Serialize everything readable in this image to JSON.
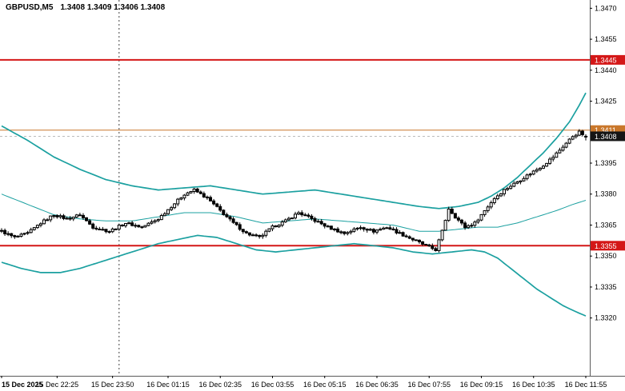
{
  "header": {
    "symbol_period": "GBPUSD,M5",
    "ohlc_text": "1.3408 1.3409 1.3406 1.3408"
  },
  "colors": {
    "background": "#ffffff",
    "band": "#1ba0a0",
    "candle_up_fill": "#ffffff",
    "candle_down_fill": "#000000",
    "candle_outline": "#000000",
    "axis_text": "#000000",
    "separator": "#5a5a5a",
    "grid_dash": "#444444",
    "current_line": "#bbbbbb",
    "level_red": "#d41717",
    "level_orange": "#c9772b",
    "current_bg": "#151515"
  },
  "chart_data": {
    "type": "candlestick",
    "title": "GBPUSD,M5",
    "symbol": "GBPUSD",
    "timeframe": "M5",
    "xlabel": "",
    "ylabel": "",
    "grid": false,
    "y_range": [
      1.3292,
      1.3474
    ],
    "num_candles": 180,
    "day_separator_index": 36,
    "y_ticks": [
      1.347,
      1.3455,
      1.344,
      1.3425,
      1.3395,
      1.338,
      1.3365,
      1.335,
      1.3335,
      1.332
    ],
    "x_labels": [
      {
        "text": "15 Dec 2025",
        "index": 0,
        "bold": true
      },
      {
        "text": "15 Dec 22:25",
        "index": 17,
        "bold": false
      },
      {
        "text": "15 Dec 23:50",
        "index": 34,
        "bold": false
      },
      {
        "text": "16 Dec 01:15",
        "index": 51,
        "bold": false
      },
      {
        "text": "16 Dec 02:35",
        "index": 67,
        "bold": false
      },
      {
        "text": "16 Dec 03:55",
        "index": 83,
        "bold": false
      },
      {
        "text": "16 Dec 05:15",
        "index": 99,
        "bold": false
      },
      {
        "text": "16 Dec 06:35",
        "index": 115,
        "bold": false
      },
      {
        "text": "16 Dec 07:55",
        "index": 131,
        "bold": false
      },
      {
        "text": "16 Dec 09:15",
        "index": 147,
        "bold": false
      },
      {
        "text": "16 Dec 10:35",
        "index": 163,
        "bold": false
      },
      {
        "text": "16 Dec 11:55",
        "index": 179,
        "bold": false
      }
    ],
    "levels": [
      {
        "label": "1.3445",
        "price": 1.3445,
        "color": "#d41717",
        "width": 2,
        "type": "resistance"
      },
      {
        "label": "1.3411",
        "price": 1.3411,
        "color": "#c9772b",
        "width": 1,
        "type": "marker"
      },
      {
        "label": "1.3355",
        "price": 1.3355,
        "color": "#d41717",
        "width": 2,
        "type": "support"
      }
    ],
    "current_price": {
      "value": 1.3408,
      "label": "1.3408",
      "bg": "#151515",
      "text_color": "#ffffff"
    },
    "last_candle": [
      1.3408,
      1.3409,
      1.3406,
      1.3408
    ],
    "price_path": [
      [
        0,
        1.3362
      ],
      [
        4,
        1.3359
      ],
      [
        8,
        1.3361
      ],
      [
        12,
        1.3366
      ],
      [
        16,
        1.337
      ],
      [
        20,
        1.3368
      ],
      [
        24,
        1.337
      ],
      [
        28,
        1.3364
      ],
      [
        33,
        1.3362
      ],
      [
        38,
        1.3366
      ],
      [
        43,
        1.3364
      ],
      [
        48,
        1.3368
      ],
      [
        52,
        1.3374
      ],
      [
        56,
        1.338
      ],
      [
        59,
        1.3382
      ],
      [
        63,
        1.3378
      ],
      [
        67,
        1.3372
      ],
      [
        71,
        1.3366
      ],
      [
        75,
        1.3361
      ],
      [
        79,
        1.3359
      ],
      [
        83,
        1.3364
      ],
      [
        87,
        1.3367
      ],
      [
        91,
        1.3371
      ],
      [
        95,
        1.3368
      ],
      [
        100,
        1.3364
      ],
      [
        105,
        1.3361
      ],
      [
        110,
        1.3364
      ],
      [
        114,
        1.3362
      ],
      [
        118,
        1.3364
      ],
      [
        122,
        1.3361
      ],
      [
        126,
        1.3358
      ],
      [
        130,
        1.3355
      ],
      [
        133,
        1.3353
      ],
      [
        135,
        1.3362
      ],
      [
        137,
        1.3373
      ],
      [
        139,
        1.3369
      ],
      [
        142,
        1.3364
      ],
      [
        145,
        1.3366
      ],
      [
        148,
        1.3372
      ],
      [
        151,
        1.3378
      ],
      [
        154,
        1.3382
      ],
      [
        157,
        1.3385
      ],
      [
        160,
        1.3388
      ],
      [
        163,
        1.3391
      ],
      [
        166,
        1.3394
      ],
      [
        169,
        1.3398
      ],
      [
        172,
        1.3403
      ],
      [
        175,
        1.3408
      ],
      [
        177,
        1.341
      ],
      [
        179,
        1.3408
      ]
    ],
    "bollinger": {
      "upper": [
        [
          0,
          1.3413
        ],
        [
          8,
          1.3406
        ],
        [
          16,
          1.3398
        ],
        [
          24,
          1.3392
        ],
        [
          32,
          1.3387
        ],
        [
          40,
          1.3384
        ],
        [
          48,
          1.3382
        ],
        [
          56,
          1.3383
        ],
        [
          64,
          1.3384
        ],
        [
          72,
          1.3382
        ],
        [
          80,
          1.338
        ],
        [
          88,
          1.3381
        ],
        [
          96,
          1.3382
        ],
        [
          104,
          1.338
        ],
        [
          112,
          1.3378
        ],
        [
          120,
          1.3376
        ],
        [
          128,
          1.3374
        ],
        [
          134,
          1.3373
        ],
        [
          140,
          1.3374
        ],
        [
          146,
          1.3376
        ],
        [
          150,
          1.3379
        ],
        [
          154,
          1.3383
        ],
        [
          158,
          1.3388
        ],
        [
          162,
          1.3394
        ],
        [
          166,
          1.34
        ],
        [
          170,
          1.3407
        ],
        [
          174,
          1.3415
        ],
        [
          177,
          1.3423
        ],
        [
          179,
          1.3429
        ]
      ],
      "middle": [
        [
          0,
          1.338
        ],
        [
          8,
          1.3375
        ],
        [
          16,
          1.337
        ],
        [
          24,
          1.3368
        ],
        [
          32,
          1.3367
        ],
        [
          40,
          1.3367
        ],
        [
          48,
          1.3369
        ],
        [
          56,
          1.3371
        ],
        [
          64,
          1.3371
        ],
        [
          72,
          1.3369
        ],
        [
          80,
          1.3366
        ],
        [
          88,
          1.3367
        ],
        [
          96,
          1.3368
        ],
        [
          104,
          1.3367
        ],
        [
          112,
          1.3366
        ],
        [
          120,
          1.3365
        ],
        [
          128,
          1.3362
        ],
        [
          134,
          1.3362
        ],
        [
          140,
          1.3363
        ],
        [
          146,
          1.3364
        ],
        [
          152,
          1.3364
        ],
        [
          158,
          1.3366
        ],
        [
          164,
          1.3369
        ],
        [
          170,
          1.3372
        ],
        [
          175,
          1.3375
        ],
        [
          179,
          1.3377
        ]
      ],
      "lower": [
        [
          0,
          1.3347
        ],
        [
          6,
          1.3344
        ],
        [
          12,
          1.3342
        ],
        [
          18,
          1.3342
        ],
        [
          24,
          1.3344
        ],
        [
          30,
          1.3347
        ],
        [
          36,
          1.335
        ],
        [
          42,
          1.3353
        ],
        [
          48,
          1.3356
        ],
        [
          54,
          1.3358
        ],
        [
          60,
          1.336
        ],
        [
          66,
          1.3359
        ],
        [
          72,
          1.3356
        ],
        [
          78,
          1.3353
        ],
        [
          84,
          1.3352
        ],
        [
          90,
          1.3353
        ],
        [
          96,
          1.3354
        ],
        [
          102,
          1.3355
        ],
        [
          108,
          1.3356
        ],
        [
          114,
          1.3355
        ],
        [
          120,
          1.3354
        ],
        [
          126,
          1.3352
        ],
        [
          132,
          1.3351
        ],
        [
          138,
          1.3352
        ],
        [
          144,
          1.3353
        ],
        [
          148,
          1.3352
        ],
        [
          152,
          1.3349
        ],
        [
          156,
          1.3344
        ],
        [
          160,
          1.3339
        ],
        [
          164,
          1.3334
        ],
        [
          168,
          1.333
        ],
        [
          172,
          1.3326
        ],
        [
          176,
          1.3323
        ],
        [
          179,
          1.3321
        ]
      ]
    }
  }
}
